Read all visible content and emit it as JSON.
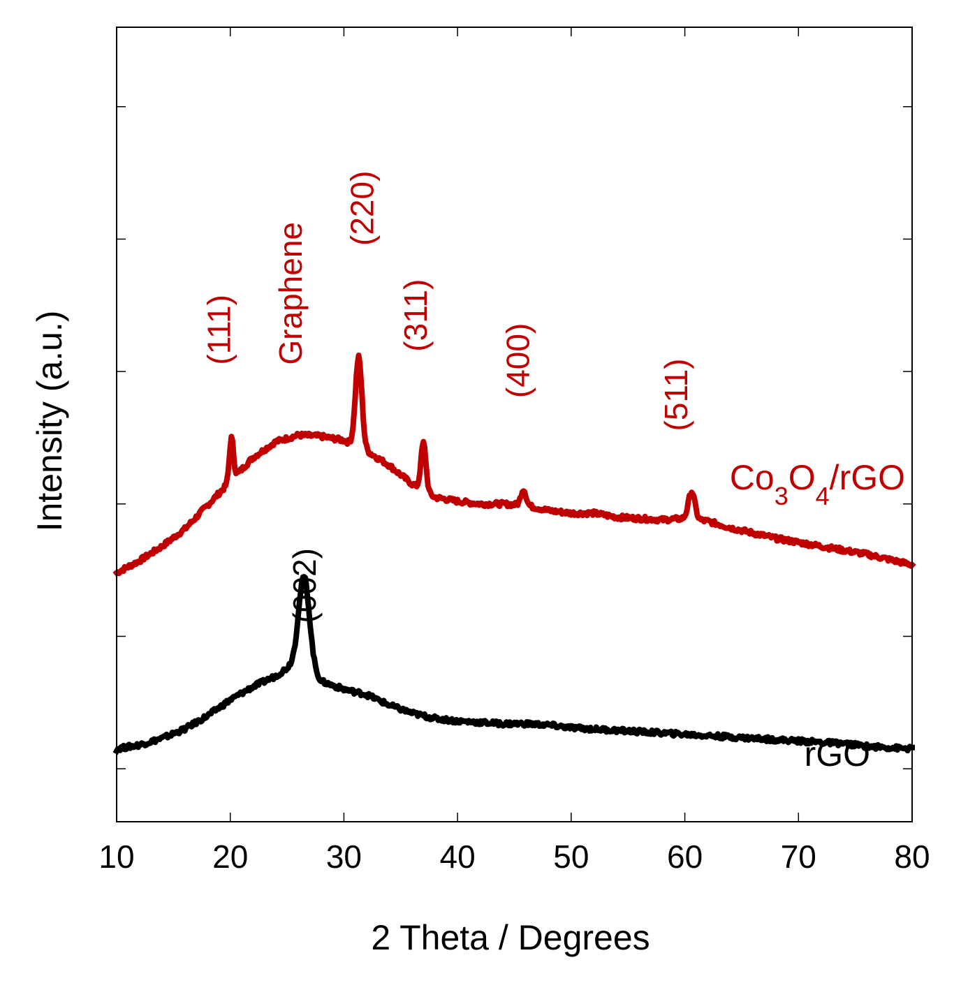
{
  "chart_data": {
    "type": "line",
    "title": "",
    "xlabel": "2 Theta / Degrees",
    "ylabel": "Intensity (a.u.)",
    "xlim": [
      10,
      80
    ],
    "ylim": [
      0,
      6
    ],
    "x_ticks": [
      10,
      20,
      30,
      40,
      50,
      60,
      70,
      80
    ],
    "x_tick_labels": [
      "10",
      "20",
      "30",
      "40",
      "50",
      "60",
      "70",
      "80"
    ],
    "y_ticks": [
      0.4,
      1.4,
      2.4,
      3.4,
      4.4,
      5.4
    ],
    "y_tick_labels": [],
    "grid": false,
    "legend": "none",
    "series": [
      {
        "name": "Co3O4/rGO",
        "label_parts": {
          "pre": "Co",
          "sub1": "3",
          "mid": "O",
          "sub2": "4",
          "post": "/rGO"
        },
        "color": "#c00000",
        "baseline": {
          "x": [
            10,
            12,
            14,
            16,
            18,
            20,
            22,
            24,
            26,
            28,
            30,
            32,
            34,
            36,
            38,
            40,
            42,
            44,
            46,
            48,
            50,
            52,
            54,
            56,
            58,
            60,
            62,
            64,
            66,
            68,
            70,
            72,
            74,
            76,
            78,
            80
          ],
          "y": [
            1.88,
            1.97,
            2.08,
            2.21,
            2.39,
            2.57,
            2.75,
            2.87,
            2.92,
            2.91,
            2.88,
            2.8,
            2.69,
            2.55,
            2.45,
            2.42,
            2.4,
            2.4,
            2.39,
            2.35,
            2.33,
            2.33,
            2.3,
            2.29,
            2.28,
            2.29,
            2.27,
            2.22,
            2.18,
            2.14,
            2.11,
            2.08,
            2.05,
            2.02,
            1.98,
            1.94
          ]
        },
        "peaks": [
          {
            "x": 20.1,
            "height": 0.32,
            "width": 0.18
          },
          {
            "x": 31.3,
            "height": 0.68,
            "width": 0.28
          },
          {
            "x": 37.0,
            "height": 0.36,
            "width": 0.22
          },
          {
            "x": 45.8,
            "height": 0.12,
            "width": 0.22
          },
          {
            "x": 60.6,
            "height": 0.21,
            "width": 0.28
          }
        ]
      },
      {
        "name": "rGO",
        "color": "#000000",
        "baseline": {
          "x": [
            10,
            12,
            14,
            16,
            18,
            20,
            22,
            24,
            25,
            26,
            27,
            28,
            30,
            32,
            34,
            36,
            38,
            40,
            42,
            44,
            46,
            48,
            50,
            52,
            54,
            56,
            58,
            60,
            62,
            64,
            66,
            68,
            70,
            72,
            74,
            76,
            78,
            80
          ],
          "y": [
            0.55,
            0.58,
            0.63,
            0.7,
            0.8,
            0.92,
            1.02,
            1.1,
            1.16,
            1.24,
            1.18,
            1.06,
            1.0,
            0.96,
            0.88,
            0.82,
            0.78,
            0.76,
            0.75,
            0.74,
            0.74,
            0.73,
            0.71,
            0.7,
            0.69,
            0.68,
            0.67,
            0.66,
            0.65,
            0.64,
            0.63,
            0.62,
            0.61,
            0.6,
            0.59,
            0.57,
            0.56,
            0.55
          ]
        },
        "peaks": [
          {
            "x": 26.5,
            "height": 0.64,
            "width": 0.45
          }
        ]
      }
    ],
    "annotations": [
      {
        "text": "(111)",
        "x": 20.0,
        "y": 3.45,
        "color": "#c00000"
      },
      {
        "text": "Graphene",
        "x": 26.3,
        "y": 3.45,
        "color": "#c00000"
      },
      {
        "text": "(220)",
        "x": 32.6,
        "y": 4.35,
        "color": "#c00000"
      },
      {
        "text": "(311)",
        "x": 37.3,
        "y": 3.55,
        "color": "#c00000"
      },
      {
        "text": "(400)",
        "x": 46.3,
        "y": 3.2,
        "color": "#c00000"
      },
      {
        "text": "(511)",
        "x": 60.2,
        "y": 2.95,
        "color": "#c00000"
      },
      {
        "text": "(002)",
        "x": 27.5,
        "y": 1.5,
        "color": "#000000"
      }
    ]
  }
}
